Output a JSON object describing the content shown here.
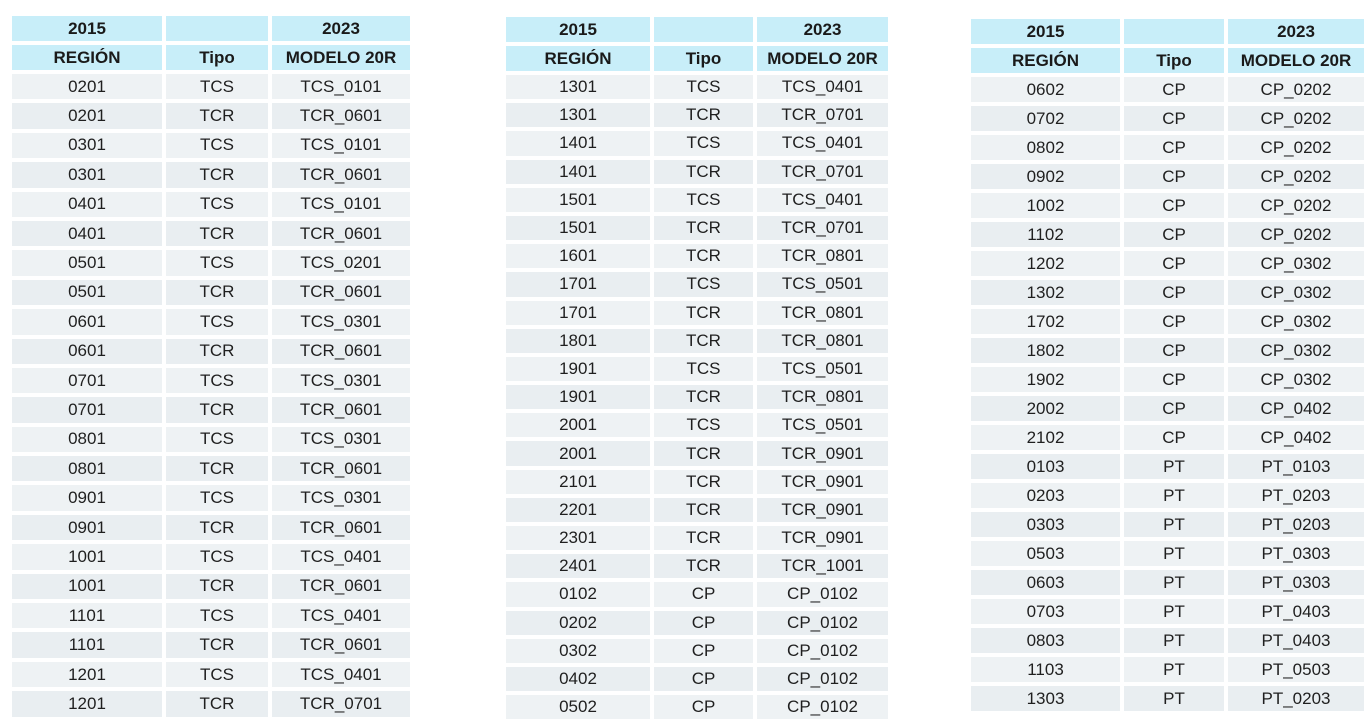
{
  "tables": [
    {
      "header_years": [
        "2015",
        "",
        "2023"
      ],
      "columns": [
        "REGIÓN",
        "Tipo",
        "MODELO 20R"
      ],
      "rows": [
        [
          "0201",
          "TCS",
          "TCS_0101"
        ],
        [
          "0201",
          "TCR",
          "TCR_0601"
        ],
        [
          "0301",
          "TCS",
          "TCS_0101"
        ],
        [
          "0301",
          "TCR",
          "TCR_0601"
        ],
        [
          "0401",
          "TCS",
          "TCS_0101"
        ],
        [
          "0401",
          "TCR",
          "TCR_0601"
        ],
        [
          "0501",
          "TCS",
          "TCS_0201"
        ],
        [
          "0501",
          "TCR",
          "TCR_0601"
        ],
        [
          "0601",
          "TCS",
          "TCS_0301"
        ],
        [
          "0601",
          "TCR",
          "TCR_0601"
        ],
        [
          "0701",
          "TCS",
          "TCS_0301"
        ],
        [
          "0701",
          "TCR",
          "TCR_0601"
        ],
        [
          "0801",
          "TCS",
          "TCS_0301"
        ],
        [
          "0801",
          "TCR",
          "TCR_0601"
        ],
        [
          "0901",
          "TCS",
          "TCS_0301"
        ],
        [
          "0901",
          "TCR",
          "TCR_0601"
        ],
        [
          "1001",
          "TCS",
          "TCS_0401"
        ],
        [
          "1001",
          "TCR",
          "TCR_0601"
        ],
        [
          "1101",
          "TCS",
          "TCS_0401"
        ],
        [
          "1101",
          "TCR",
          "TCR_0601"
        ],
        [
          "1201",
          "TCS",
          "TCS_0401"
        ],
        [
          "1201",
          "TCR",
          "TCR_0701"
        ]
      ]
    },
    {
      "header_years": [
        "2015",
        "",
        "2023"
      ],
      "columns": [
        "REGIÓN",
        "Tipo",
        "MODELO 20R"
      ],
      "rows": [
        [
          "1301",
          "TCS",
          "TCS_0401"
        ],
        [
          "1301",
          "TCR",
          "TCR_0701"
        ],
        [
          "1401",
          "TCS",
          "TCS_0401"
        ],
        [
          "1401",
          "TCR",
          "TCR_0701"
        ],
        [
          "1501",
          "TCS",
          "TCS_0401"
        ],
        [
          "1501",
          "TCR",
          "TCR_0701"
        ],
        [
          "1601",
          "TCR",
          "TCR_0801"
        ],
        [
          "1701",
          "TCS",
          "TCS_0501"
        ],
        [
          "1701",
          "TCR",
          "TCR_0801"
        ],
        [
          "1801",
          "TCR",
          "TCR_0801"
        ],
        [
          "1901",
          "TCS",
          "TCS_0501"
        ],
        [
          "1901",
          "TCR",
          "TCR_0801"
        ],
        [
          "2001",
          "TCS",
          "TCS_0501"
        ],
        [
          "2001",
          "TCR",
          "TCR_0901"
        ],
        [
          "2101",
          "TCR",
          "TCR_0901"
        ],
        [
          "2201",
          "TCR",
          "TCR_0901"
        ],
        [
          "2301",
          "TCR",
          "TCR_0901"
        ],
        [
          "2401",
          "TCR",
          "TCR_1001"
        ],
        [
          "0102",
          "CP",
          "CP_0102"
        ],
        [
          "0202",
          "CP",
          "CP_0102"
        ],
        [
          "0302",
          "CP",
          "CP_0102"
        ],
        [
          "0402",
          "CP",
          "CP_0102"
        ],
        [
          "0502",
          "CP",
          "CP_0102"
        ]
      ]
    },
    {
      "header_years": [
        "2015",
        "",
        "2023"
      ],
      "columns": [
        "REGIÓN",
        "Tipo",
        "MODELO 20R"
      ],
      "rows": [
        [
          "0602",
          "CP",
          "CP_0202"
        ],
        [
          "0702",
          "CP",
          "CP_0202"
        ],
        [
          "0802",
          "CP",
          "CP_0202"
        ],
        [
          "0902",
          "CP",
          "CP_0202"
        ],
        [
          "1002",
          "CP",
          "CP_0202"
        ],
        [
          "1102",
          "CP",
          "CP_0202"
        ],
        [
          "1202",
          "CP",
          "CP_0302"
        ],
        [
          "1302",
          "CP",
          "CP_0302"
        ],
        [
          "1702",
          "CP",
          "CP_0302"
        ],
        [
          "1802",
          "CP",
          "CP_0302"
        ],
        [
          "1902",
          "CP",
          "CP_0302"
        ],
        [
          "2002",
          "CP",
          "CP_0402"
        ],
        [
          "2102",
          "CP",
          "CP_0402"
        ],
        [
          "0103",
          "PT",
          "PT_0103"
        ],
        [
          "0203",
          "PT",
          "PT_0203"
        ],
        [
          "0303",
          "PT",
          "PT_0203"
        ],
        [
          "0503",
          "PT",
          "PT_0303"
        ],
        [
          "0603",
          "PT",
          "PT_0303"
        ],
        [
          "0703",
          "PT",
          "PT_0403"
        ],
        [
          "0803",
          "PT",
          "PT_0403"
        ],
        [
          "1103",
          "PT",
          "PT_0503"
        ],
        [
          "1303",
          "PT",
          "PT_0203"
        ]
      ]
    }
  ]
}
